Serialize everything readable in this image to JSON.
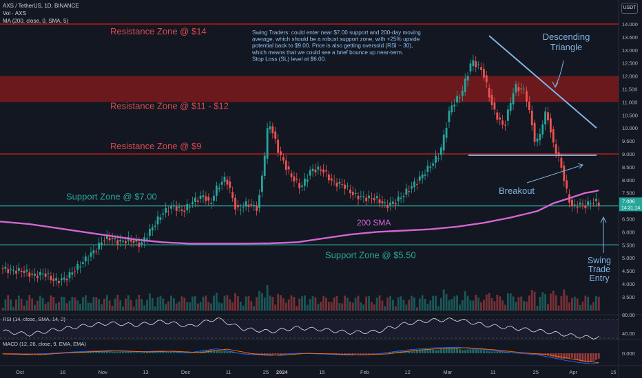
{
  "header": {
    "symbol_line": "AXS / TetherUS, 1D, BINANCE",
    "vol_line": "Vol · AXS",
    "ma_line": "MA (200, close, 0, SMA, 5)",
    "currency_button": "USDT"
  },
  "colors": {
    "background": "#131722",
    "up": "#26a69a",
    "down": "#ef5350",
    "resistance": "#b71c1c",
    "support": "#26a69a",
    "sma": "#d466d4",
    "annotation_blue": "#7fb6e6",
    "note_text": "#8fc3f5"
  },
  "chart_data": [
    {
      "type": "candlestick",
      "title": "",
      "y_scale": "linear",
      "ylim": [
        3.1,
        14.3
      ],
      "y_ticks": [
        "14.000",
        "13.500",
        "13.000",
        "12.500",
        "12.000",
        "11.500",
        "11.000",
        "10.500",
        "10.000",
        "9.500",
        "9.000",
        "8.500",
        "8.000",
        "7.500",
        "7.000",
        "6.500",
        "6.000",
        "5.500",
        "5.000",
        "4.500",
        "4.000",
        "3.500"
      ],
      "x_ticks": [
        "Oct",
        "16",
        "Nov",
        "13",
        "Dec",
        "11",
        "25",
        "2024",
        "15",
        "Feb",
        "12",
        "Mar",
        "11",
        "25",
        "Apr",
        "15"
      ],
      "last_price": "7.086",
      "countdown": "14:31:14",
      "sma_label": "200 SMA",
      "zones": [
        {
          "label": "Resistance Zone @ $14",
          "kind": "resistance",
          "price": 14.0
        },
        {
          "label": "Resistance Zone @ $11 - $12",
          "kind": "resistance",
          "low": 11.0,
          "high": 12.0
        },
        {
          "label": "Resistance Zone @ $9",
          "kind": "resistance",
          "price": 9.0
        },
        {
          "label": "Support Zone @ $7.00",
          "kind": "support",
          "price": 7.0
        },
        {
          "label": "Support Zone @ $5.50",
          "kind": "support",
          "price": 5.5
        }
      ],
      "annotations": {
        "note": [
          "Swing Traders: could enter near $7.00 support and 200-day moving",
          "average, which should be a robust support zone, with +25% upside",
          "potential back to $9.00. Price is also getting oversold (RSI ~ 30),",
          "which means that we could see a brief bounce up near-term.",
          "Stop Loss (SL) level at $6.00."
        ],
        "triangle": [
          "Descending",
          "Triangle"
        ],
        "breakout": "Breakout",
        "entry": [
          "Swing",
          "Trade",
          "Entry"
        ]
      },
      "sma_200": [
        6.4,
        6.3,
        6.15,
        6.0,
        5.85,
        5.7,
        5.6,
        5.55,
        5.55,
        5.55,
        5.56,
        5.6,
        5.75,
        5.9,
        6.0,
        6.05,
        6.1,
        6.2,
        6.35,
        6.55,
        6.8,
        7.1,
        7.3,
        7.5,
        7.55,
        7.6
      ],
      "sma_days": [
        0,
        10,
        20,
        30,
        40,
        50,
        60,
        70,
        80,
        90,
        100,
        110,
        120,
        130,
        140,
        150,
        160,
        170,
        180,
        190,
        200,
        206,
        212,
        218,
        221,
        223
      ],
      "price_anchors": {
        "days": [
          0,
          4,
          8,
          12,
          16,
          20,
          24,
          28,
          32,
          36,
          38,
          40,
          44,
          48,
          52,
          56,
          60,
          64,
          68,
          72,
          76,
          78,
          80,
          84,
          88,
          92,
          96,
          100,
          104,
          108,
          112,
          116,
          120,
          124,
          128,
          132,
          136,
          140,
          144,
          148,
          152,
          156,
          160,
          164,
          168,
          172,
          176,
          180,
          184,
          188,
          192,
          196,
          200,
          204,
          206,
          208,
          210,
          212,
          214,
          216,
          218,
          220,
          222,
          223
        ],
        "values": [
          4.6,
          4.5,
          4.5,
          4.3,
          4.4,
          4.1,
          4.2,
          4.6,
          5.0,
          5.4,
          5.7,
          5.8,
          5.6,
          5.7,
          5.5,
          6.1,
          6.7,
          7.0,
          6.8,
          7.2,
          7.4,
          7.0,
          7.6,
          8.1,
          6.8,
          7.1,
          6.9,
          10.3,
          9.0,
          8.2,
          7.7,
          8.4,
          8.4,
          7.9,
          7.8,
          7.4,
          7.3,
          7.3,
          7.0,
          7.2,
          7.6,
          8.0,
          8.5,
          9.0,
          10.8,
          11.3,
          12.6,
          12.2,
          10.7,
          10.0,
          11.6,
          11.4,
          9.3,
          10.7,
          9.5,
          9.0,
          8.3,
          7.3,
          6.9,
          7.1,
          7.0,
          7.1,
          7.2,
          7.1
        ]
      }
    },
    {
      "type": "line",
      "title": "RSI (14, close, SMA, 14, 2)",
      "ylim": [
        30,
        80
      ],
      "y_ticks": [
        "80.00",
        "40.00"
      ],
      "days": [
        0,
        10,
        20,
        30,
        40,
        50,
        60,
        70,
        80,
        90,
        100,
        110,
        120,
        130,
        140,
        150,
        160,
        170,
        180,
        190,
        200,
        210,
        215,
        220,
        223
      ],
      "values": [
        45,
        38,
        48,
        56,
        62,
        58,
        66,
        55,
        72,
        50,
        44,
        52,
        48,
        42,
        44,
        60,
        68,
        70,
        58,
        52,
        46,
        38,
        34,
        31,
        33
      ]
    },
    {
      "type": "histogram",
      "title": "MACD (12, 26, close, 9, EMA, EMA)",
      "y_ticks": [
        "0.000"
      ],
      "days": [
        0,
        10,
        20,
        30,
        40,
        50,
        60,
        70,
        80,
        90,
        100,
        110,
        120,
        130,
        140,
        150,
        160,
        170,
        180,
        190,
        200,
        210,
        215,
        220,
        223
      ],
      "values": [
        -0.05,
        -0.1,
        0.02,
        0.12,
        0.18,
        0.1,
        0.15,
        0.05,
        0.3,
        -0.05,
        -0.15,
        0.0,
        -0.05,
        -0.12,
        -0.05,
        0.2,
        0.35,
        0.4,
        0.25,
        0.05,
        -0.1,
        -0.45,
        -0.6,
        -0.7,
        -0.65
      ]
    }
  ]
}
